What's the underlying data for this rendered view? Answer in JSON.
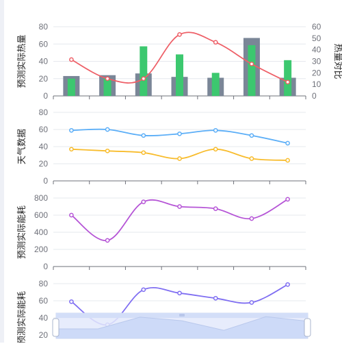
{
  "chart_data": [
    {
      "type": "bar",
      "ylabel": "预测实际热量",
      "y2label": "热量对比",
      "ylim": [
        0,
        80
      ],
      "y2lim": [
        0,
        60
      ],
      "yticks": [
        "0",
        "20",
        "40",
        "60",
        "80"
      ],
      "y2ticks": [
        "0",
        "10",
        "20",
        "30",
        "40",
        "50",
        "60"
      ],
      "series": [
        {
          "type": "bar",
          "axis": "left",
          "values": [
            23,
            24,
            26,
            22,
            21,
            67,
            21
          ],
          "color": "#7a8697"
        },
        {
          "type": "bar",
          "axis": "right",
          "values": [
            15,
            15,
            43,
            36,
            20,
            44,
            31
          ],
          "color": "#3cc86f"
        },
        {
          "type": "line",
          "axis": "left",
          "values": [
            42,
            20,
            20,
            71,
            62,
            37,
            16
          ],
          "color": "#ee5f67"
        }
      ]
    },
    {
      "type": "line",
      "ylabel": "天气数据",
      "ylim": [
        0,
        80
      ],
      "yticks": [
        "0",
        "20",
        "40",
        "60",
        "80"
      ],
      "series": [
        {
          "values": [
            59,
            60,
            53,
            55,
            59,
            53,
            44
          ],
          "color": "#5baef7"
        },
        {
          "values": [
            37,
            35,
            33,
            26,
            37,
            26,
            24
          ],
          "color": "#f8bc2c"
        }
      ]
    },
    {
      "type": "line",
      "ylabel": "预测实际能耗",
      "ylim": [
        0,
        800
      ],
      "yticks": [
        "0",
        "200",
        "400",
        "600",
        "800"
      ],
      "series": [
        {
          "values": [
            600,
            305,
            755,
            700,
            675,
            560,
            785
          ],
          "color": "#b554d6"
        }
      ]
    },
    {
      "type": "line",
      "ylabel": "预测实际能耗",
      "ylim": [
        0,
        80
      ],
      "yticks": [
        "20",
        "40",
        "60",
        "80"
      ],
      "series": [
        {
          "values": [
            59,
            32,
            73,
            69,
            63,
            58,
            79
          ],
          "color": "#7f6ef2"
        }
      ]
    }
  ],
  "data_zoom": {
    "start": 0,
    "end": 1,
    "preview": [
      19,
      19,
      42,
      35,
      16,
      43,
      34
    ]
  }
}
